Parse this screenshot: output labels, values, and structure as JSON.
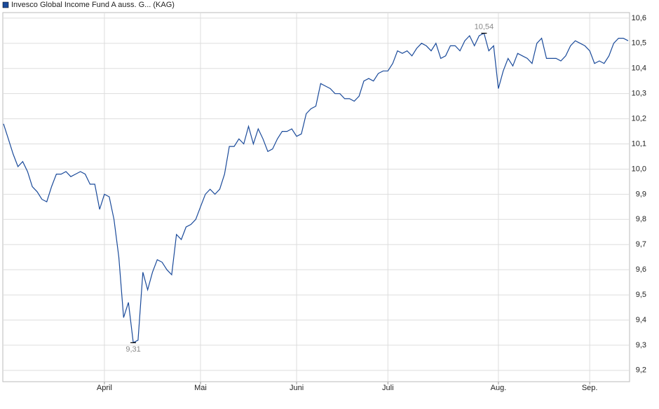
{
  "chart_data": {
    "type": "line",
    "categories": [
      null,
      null,
      null,
      null,
      null,
      null,
      null,
      null,
      null,
      null,
      null,
      null,
      null,
      null,
      null,
      null,
      null,
      null,
      null,
      null,
      null,
      "April",
      null,
      null,
      null,
      null,
      null,
      null,
      null,
      null,
      null,
      null,
      null,
      null,
      null,
      null,
      null,
      null,
      null,
      null,
      null,
      "Mai",
      null,
      null,
      null,
      null,
      null,
      null,
      null,
      null,
      null,
      null,
      null,
      null,
      null,
      null,
      null,
      null,
      null,
      null,
      null,
      "Juni",
      null,
      null,
      null,
      null,
      null,
      null,
      null,
      null,
      null,
      null,
      null,
      null,
      null,
      null,
      null,
      null,
      null,
      null,
      "Juli",
      null,
      null,
      null,
      null,
      null,
      null,
      null,
      null,
      null,
      null,
      null,
      null,
      null,
      null,
      null,
      null,
      null,
      null,
      null,
      null,
      null,
      null,
      "Aug.",
      null,
      null,
      null,
      null,
      null,
      null,
      null,
      null,
      null,
      null,
      null,
      null,
      null,
      null,
      null,
      null,
      null,
      null,
      "Sep.",
      null,
      null,
      null,
      null,
      null,
      null,
      null,
      null
    ],
    "series": [
      {
        "name": "Invesco Global Income Fund A auss. G... (KAG)",
        "color": "#1a4a9a",
        "values": [
          10.18,
          10.12,
          10.06,
          10.01,
          10.03,
          9.99,
          9.93,
          9.91,
          9.88,
          9.87,
          9.93,
          9.98,
          9.98,
          9.99,
          9.97,
          9.98,
          9.99,
          9.98,
          9.94,
          9.94,
          9.84,
          9.9,
          9.89,
          9.8,
          9.65,
          9.41,
          9.47,
          9.31,
          9.32,
          9.59,
          9.52,
          9.59,
          9.64,
          9.63,
          9.6,
          9.58,
          9.74,
          9.72,
          9.77,
          9.78,
          9.8,
          9.85,
          9.9,
          9.92,
          9.9,
          9.92,
          9.98,
          10.09,
          10.09,
          10.12,
          10.1,
          10.17,
          10.1,
          10.16,
          10.12,
          10.07,
          10.08,
          10.12,
          10.15,
          10.15,
          10.16,
          10.13,
          10.14,
          10.22,
          10.24,
          10.25,
          10.34,
          10.33,
          10.32,
          10.3,
          10.3,
          10.28,
          10.28,
          10.27,
          10.29,
          10.35,
          10.36,
          10.35,
          10.38,
          10.39,
          10.39,
          10.42,
          10.47,
          10.46,
          10.47,
          10.45,
          10.48,
          10.5,
          10.49,
          10.47,
          10.5,
          10.44,
          10.45,
          10.49,
          10.49,
          10.47,
          10.51,
          10.53,
          10.49,
          10.53,
          10.54,
          10.47,
          10.49,
          10.32,
          10.39,
          10.44,
          10.41,
          10.46,
          10.45,
          10.44,
          10.42,
          10.5,
          10.52,
          10.44,
          10.44,
          10.44,
          10.43,
          10.45,
          10.49,
          10.51,
          10.5,
          10.49,
          10.47,
          10.42,
          10.43,
          10.42,
          10.45,
          10.5,
          10.52,
          10.52,
          10.51
        ],
        "value_labels": [
          null,
          null,
          null,
          null,
          null,
          null,
          null,
          null,
          null,
          null,
          null,
          null,
          null,
          null,
          null,
          null,
          null,
          null,
          null,
          null,
          null,
          null,
          null,
          null,
          null,
          null,
          null,
          "9,31",
          null,
          null,
          null,
          null,
          null,
          null,
          null,
          null,
          null,
          null,
          null,
          null,
          null,
          null,
          null,
          null,
          null,
          null,
          null,
          null,
          null,
          null,
          null,
          null,
          null,
          null,
          null,
          null,
          null,
          null,
          null,
          null,
          null,
          null,
          null,
          null,
          null,
          null,
          null,
          null,
          null,
          null,
          null,
          null,
          null,
          null,
          null,
          null,
          null,
          null,
          null,
          null,
          null,
          null,
          null,
          null,
          null,
          null,
          null,
          null,
          null,
          null,
          null,
          null,
          null,
          null,
          null,
          null,
          null,
          null,
          null,
          null,
          "10,54",
          null,
          null,
          null,
          null,
          null,
          null,
          null,
          null,
          null,
          null,
          null,
          null,
          null,
          null,
          null,
          null,
          null,
          null,
          null,
          null,
          null,
          null,
          null,
          null,
          null,
          null,
          null,
          null,
          null,
          null
        ]
      }
    ],
    "ylim": [
      9.155,
      10.622
    ],
    "yticks": [
      {
        "value": 9.2,
        "label": "9,2"
      },
      {
        "value": 9.3,
        "label": "9,3"
      },
      {
        "value": 9.4,
        "label": "9,4"
      },
      {
        "value": 9.5,
        "label": "9,5"
      },
      {
        "value": 9.6,
        "label": "9,6"
      },
      {
        "value": 9.7,
        "label": "9,7"
      },
      {
        "value": 9.8,
        "label": "9,8"
      },
      {
        "value": 9.9,
        "label": "9,9"
      },
      {
        "value": 10.0,
        "label": "10,0"
      },
      {
        "value": 10.1,
        "label": "10,1"
      },
      {
        "value": 10.2,
        "label": "10,2"
      },
      {
        "value": 10.3,
        "label": "10,3"
      },
      {
        "value": 10.4,
        "label": "10,4"
      },
      {
        "value": 10.5,
        "label": "10,5"
      },
      {
        "value": 10.6,
        "label": "10,6"
      }
    ],
    "grid": true
  }
}
